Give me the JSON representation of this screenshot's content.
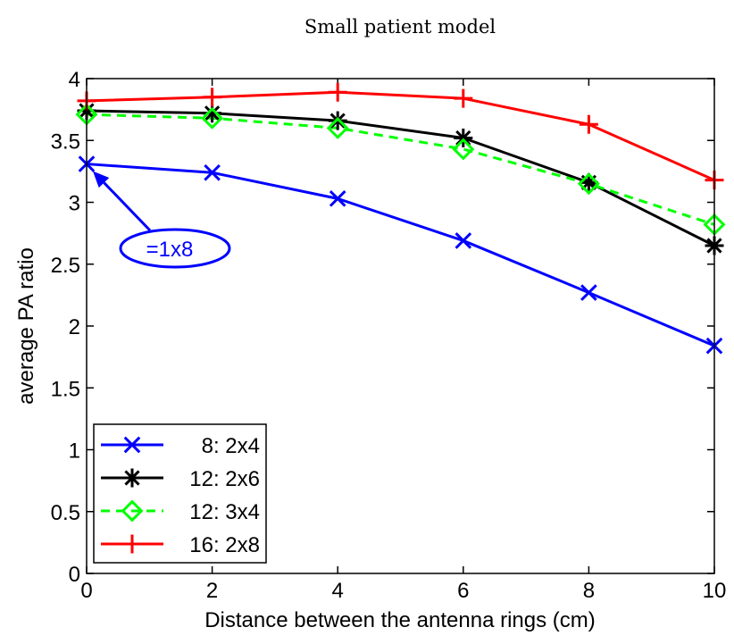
{
  "chart_data": {
    "type": "line",
    "title": "Small patient model",
    "xlabel": "Distance between the antenna rings (cm)",
    "ylabel": "average PA ratio",
    "xlim": [
      0,
      10
    ],
    "ylim": [
      0,
      4
    ],
    "xticks": [
      0,
      2,
      4,
      6,
      8,
      10
    ],
    "yticks": [
      0,
      0.5,
      1,
      1.5,
      2,
      2.5,
      3,
      3.5,
      4
    ],
    "xtick_labels": [
      "0",
      "2",
      "4",
      "6",
      "8",
      "10"
    ],
    "ytick_labels": [
      "0",
      "0.5",
      "1",
      "1.5",
      "2",
      "2.5",
      "3",
      "3.5",
      "4"
    ],
    "grid": false,
    "legend_position": "bottom-left",
    "x": [
      0,
      2,
      4,
      6,
      8,
      10
    ],
    "series": [
      {
        "name": "  8: 2x4",
        "color": "#0000ff",
        "marker": "x-mark",
        "dash": "solid",
        "values": [
          3.31,
          3.24,
          3.03,
          2.69,
          2.27,
          1.84
        ]
      },
      {
        "name": "12: 2x6",
        "color": "#000000",
        "marker": "asterisk",
        "dash": "solid",
        "values": [
          3.74,
          3.72,
          3.66,
          3.52,
          3.16,
          2.65
        ]
      },
      {
        "name": "12: 3x4",
        "color": "#00ff00",
        "marker": "diamond",
        "dash": "dashed",
        "values": [
          3.71,
          3.68,
          3.6,
          3.43,
          3.15,
          2.82
        ]
      },
      {
        "name": "16: 2x8",
        "color": "#ff0000",
        "marker": "plus",
        "dash": "solid",
        "values": [
          3.82,
          3.85,
          3.89,
          3.84,
          3.63,
          3.18
        ]
      }
    ],
    "annotations": [
      {
        "text": "=1x8",
        "color": "#0000ff",
        "target_x": 0,
        "target_y": 3.31
      }
    ]
  }
}
